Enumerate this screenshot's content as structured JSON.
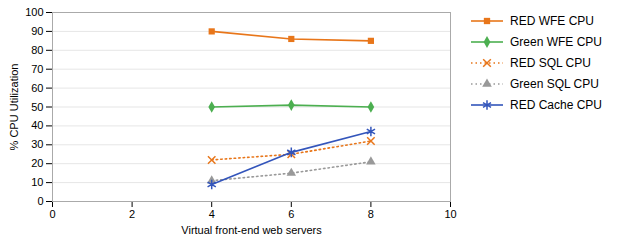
{
  "chart_data": {
    "type": "line",
    "x": [
      4,
      6,
      8
    ],
    "series": [
      {
        "name": "RED WFE CPU",
        "color": "#E8761A",
        "values": [
          90,
          86,
          85
        ],
        "marker": "square",
        "line_style": "solid"
      },
      {
        "name": "Green WFE CPU",
        "color": "#4CAF50",
        "values": [
          50,
          51,
          50
        ],
        "marker": "diamond",
        "line_style": "solid"
      },
      {
        "name": "RED SQL CPU",
        "color": "#E8761A",
        "values": [
          22,
          25,
          32
        ],
        "marker": "x",
        "line_style": "dotted"
      },
      {
        "name": "Green SQL CPU",
        "color": "#999999",
        "values": [
          11,
          15,
          21
        ],
        "marker": "triangle",
        "line_style": "dotted"
      },
      {
        "name": "RED Cache CPU",
        "color": "#3355BB",
        "values": [
          9,
          26,
          37
        ],
        "marker": "asterisk",
        "line_style": "solid"
      }
    ],
    "xlabel": "Virtual front-end web servers",
    "ylabel": "% CPU Utilization",
    "xlim": [
      0,
      10
    ],
    "ylim": [
      0,
      100
    ],
    "xticks": [
      0,
      2,
      4,
      6,
      8,
      10
    ],
    "yticks": [
      0,
      10,
      20,
      30,
      40,
      50,
      60,
      70,
      80,
      90,
      100
    ],
    "grid": "y",
    "legend": "right"
  }
}
